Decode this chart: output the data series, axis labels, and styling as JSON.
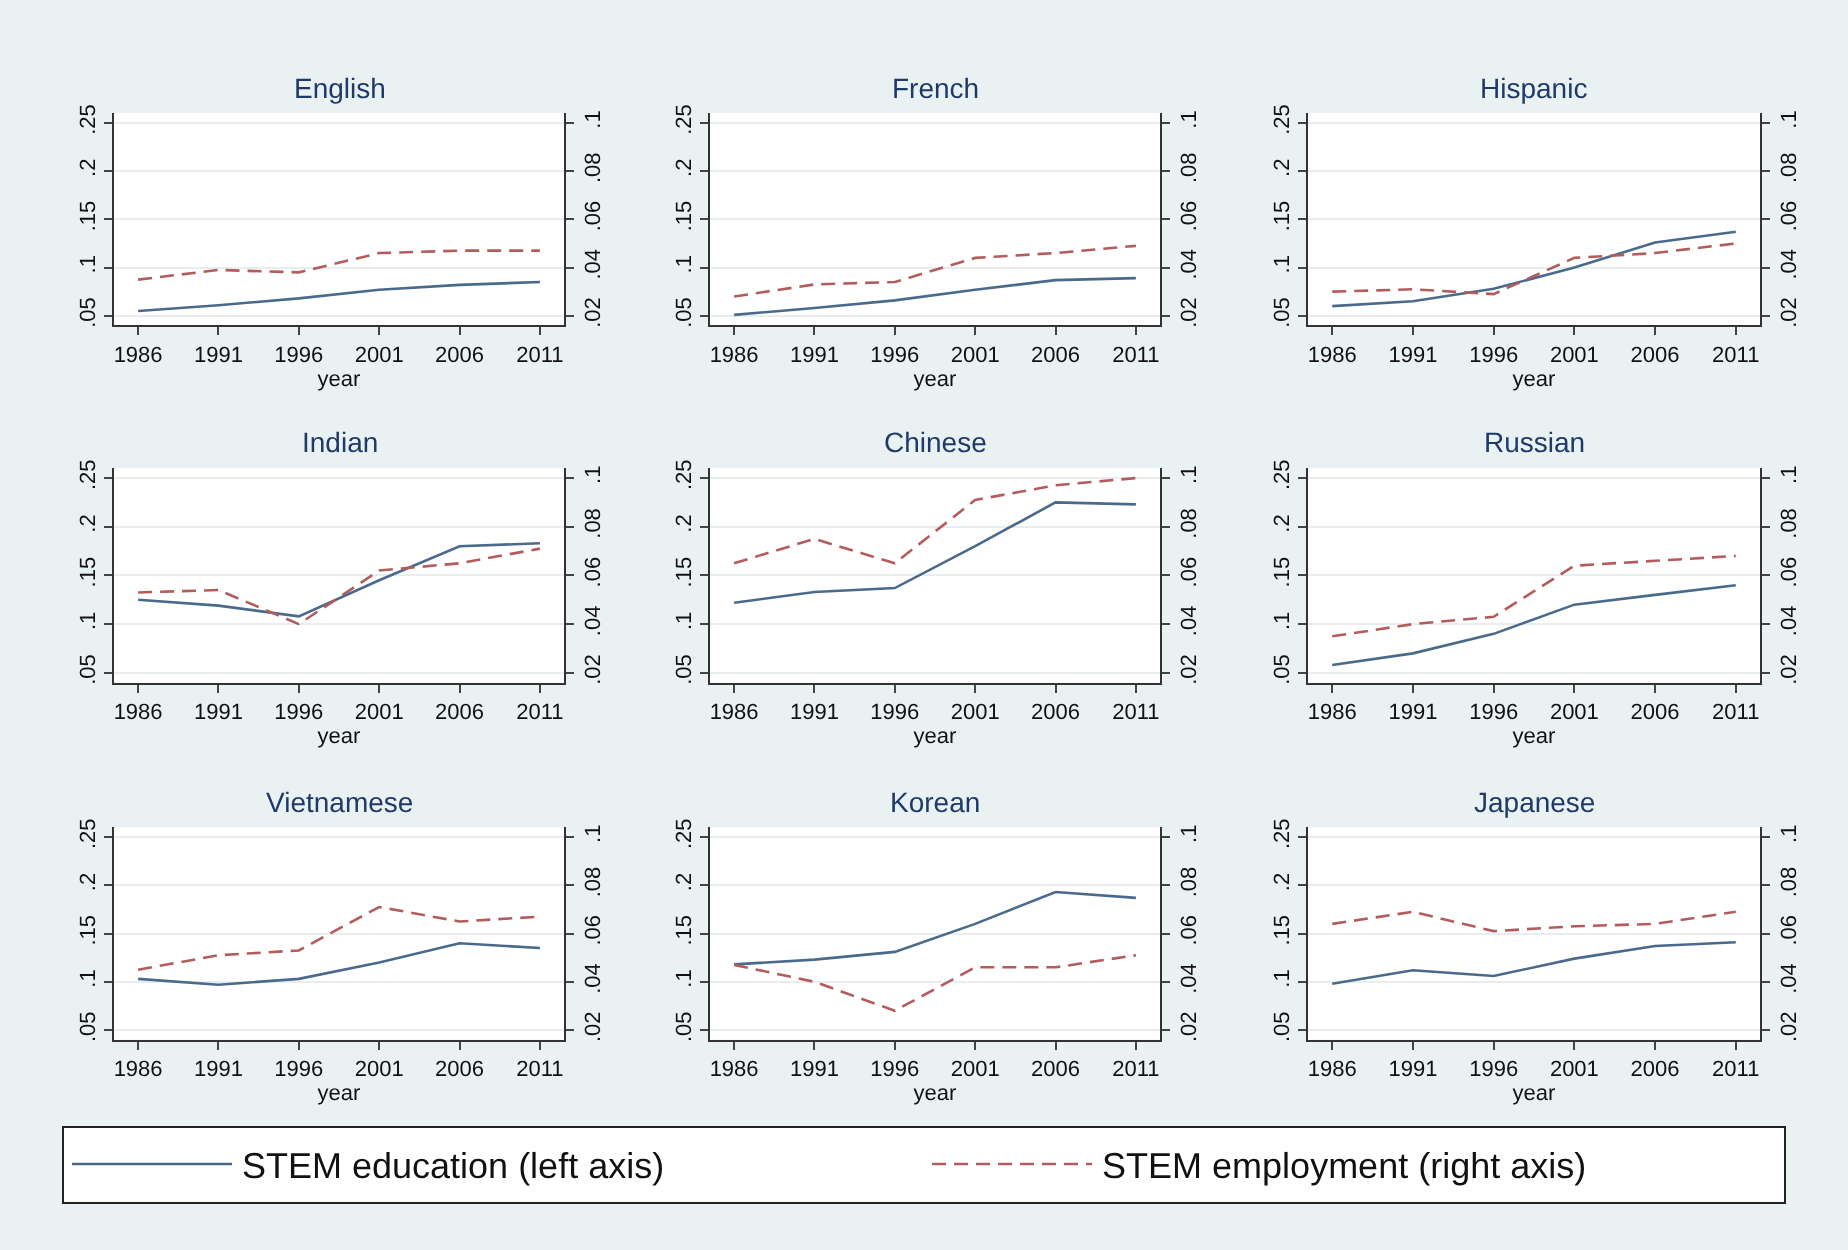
{
  "chart_data": [
    {
      "type": "line",
      "title": "English",
      "xlabel": "year",
      "x": [
        1986,
        1991,
        1996,
        2001,
        2006,
        2011
      ],
      "xlim": [
        1984.5,
        2012.5
      ],
      "xticks": [
        1986,
        1991,
        1996,
        2001,
        2006,
        2011
      ],
      "ylim": [
        0.04,
        0.26
      ],
      "yticks": [
        {
          "value": 0.05,
          "label": ".05"
        },
        {
          "value": 0.1,
          "label": ".1"
        },
        {
          "value": 0.15,
          "label": ".15"
        },
        {
          "value": 0.2,
          "label": ".2"
        },
        {
          "value": 0.25,
          "label": ".25"
        }
      ],
      "y2lim": [
        0.016,
        0.104
      ],
      "y2ticks": [
        {
          "value": 0.02,
          "label": ".02"
        },
        {
          "value": 0.04,
          "label": ".04"
        },
        {
          "value": 0.06,
          "label": ".06"
        },
        {
          "value": 0.08,
          "label": ".08"
        },
        {
          "value": 0.1,
          "label": ".1"
        }
      ],
      "grid": "y",
      "legend": "bottom",
      "series": [
        {
          "name": "STEM education (left axis)",
          "color": "#4a6a8c",
          "line_style": "solid",
          "values": [
            0.055,
            0.061,
            0.068,
            0.077,
            0.082,
            0.085
          ]
        },
        {
          "name": "STEM employment (right axis)",
          "color": "#b25c5c",
          "line_style": "dashed",
          "axis": "y2",
          "values": [
            0.035,
            0.039,
            0.038,
            0.046,
            0.047,
            0.047
          ]
        }
      ]
    },
    {
      "type": "line",
      "title": "French",
      "xlabel": "year",
      "x": [
        1986,
        1991,
        1996,
        2001,
        2006,
        2011
      ],
      "xlim": [
        1984.5,
        2012.5
      ],
      "xticks": [
        1986,
        1991,
        1996,
        2001,
        2006,
        2011
      ],
      "ylim": [
        0.04,
        0.26
      ],
      "yticks": [
        {
          "value": 0.05,
          "label": ".05"
        },
        {
          "value": 0.1,
          "label": ".1"
        },
        {
          "value": 0.15,
          "label": ".15"
        },
        {
          "value": 0.2,
          "label": ".2"
        },
        {
          "value": 0.25,
          "label": ".25"
        }
      ],
      "y2lim": [
        0.016,
        0.104
      ],
      "y2ticks": [
        {
          "value": 0.02,
          "label": ".02"
        },
        {
          "value": 0.04,
          "label": ".04"
        },
        {
          "value": 0.06,
          "label": ".06"
        },
        {
          "value": 0.08,
          "label": ".08"
        },
        {
          "value": 0.1,
          "label": ".1"
        }
      ],
      "grid": "y",
      "series": [
        {
          "name": "STEM education (left axis)",
          "color": "#4a6a8c",
          "line_style": "solid",
          "values": [
            0.051,
            0.058,
            0.066,
            0.077,
            0.087,
            0.089
          ]
        },
        {
          "name": "STEM employment (right axis)",
          "color": "#b25c5c",
          "line_style": "dashed",
          "axis": "y2",
          "values": [
            0.028,
            0.033,
            0.034,
            0.044,
            0.046,
            0.049
          ]
        }
      ]
    },
    {
      "type": "line",
      "title": "Hispanic",
      "xlabel": "year",
      "x": [
        1986,
        1991,
        1996,
        2001,
        2006,
        2011
      ],
      "xlim": [
        1984.5,
        2012.5
      ],
      "xticks": [
        1986,
        1991,
        1996,
        2001,
        2006,
        2011
      ],
      "ylim": [
        0.04,
        0.26
      ],
      "yticks": [
        {
          "value": 0.05,
          "label": ".05"
        },
        {
          "value": 0.1,
          "label": ".1"
        },
        {
          "value": 0.15,
          "label": ".15"
        },
        {
          "value": 0.2,
          "label": ".2"
        },
        {
          "value": 0.25,
          "label": ".25"
        }
      ],
      "y2lim": [
        0.016,
        0.104
      ],
      "y2ticks": [
        {
          "value": 0.02,
          "label": ".02"
        },
        {
          "value": 0.04,
          "label": ".04"
        },
        {
          "value": 0.06,
          "label": ".06"
        },
        {
          "value": 0.08,
          "label": ".08"
        },
        {
          "value": 0.1,
          "label": ".1"
        }
      ],
      "grid": "y",
      "series": [
        {
          "name": "STEM education (left axis)",
          "color": "#4a6a8c",
          "line_style": "solid",
          "values": [
            0.06,
            0.065,
            0.078,
            0.1,
            0.126,
            0.137
          ]
        },
        {
          "name": "STEM employment (right axis)",
          "color": "#b25c5c",
          "line_style": "dashed",
          "axis": "y2",
          "values": [
            0.03,
            0.031,
            0.029,
            0.044,
            0.046,
            0.05
          ]
        }
      ]
    },
    {
      "type": "line",
      "title": "Indian",
      "xlabel": "year",
      "x": [
        1986,
        1991,
        1996,
        2001,
        2006,
        2011
      ],
      "xlim": [
        1984.5,
        2012.5
      ],
      "xticks": [
        1986,
        1991,
        1996,
        2001,
        2006,
        2011
      ],
      "ylim": [
        0.04,
        0.26
      ],
      "yticks": [
        {
          "value": 0.05,
          "label": ".05"
        },
        {
          "value": 0.1,
          "label": ".1"
        },
        {
          "value": 0.15,
          "label": ".15"
        },
        {
          "value": 0.2,
          "label": ".2"
        },
        {
          "value": 0.25,
          "label": ".25"
        }
      ],
      "y2lim": [
        0.016,
        0.104
      ],
      "y2ticks": [
        {
          "value": 0.02,
          "label": ".02"
        },
        {
          "value": 0.04,
          "label": ".04"
        },
        {
          "value": 0.06,
          "label": ".06"
        },
        {
          "value": 0.08,
          "label": ".08"
        },
        {
          "value": 0.1,
          "label": ".1"
        }
      ],
      "grid": "y",
      "series": [
        {
          "name": "STEM education (left axis)",
          "color": "#4a6a8c",
          "line_style": "solid",
          "values": [
            0.125,
            0.119,
            0.108,
            0.145,
            0.18,
            0.183
          ]
        },
        {
          "name": "STEM employment (right axis)",
          "color": "#b25c5c",
          "line_style": "dashed",
          "axis": "y2",
          "values": [
            0.053,
            0.054,
            0.04,
            0.062,
            0.065,
            0.071
          ]
        }
      ]
    },
    {
      "type": "line",
      "title": "Chinese",
      "xlabel": "year",
      "x": [
        1986,
        1991,
        1996,
        2001,
        2006,
        2011
      ],
      "xlim": [
        1984.5,
        2012.5
      ],
      "xticks": [
        1986,
        1991,
        1996,
        2001,
        2006,
        2011
      ],
      "ylim": [
        0.04,
        0.26
      ],
      "yticks": [
        {
          "value": 0.05,
          "label": ".05"
        },
        {
          "value": 0.1,
          "label": ".1"
        },
        {
          "value": 0.15,
          "label": ".15"
        },
        {
          "value": 0.2,
          "label": ".2"
        },
        {
          "value": 0.25,
          "label": ".25"
        }
      ],
      "y2lim": [
        0.016,
        0.104
      ],
      "y2ticks": [
        {
          "value": 0.02,
          "label": ".02"
        },
        {
          "value": 0.04,
          "label": ".04"
        },
        {
          "value": 0.06,
          "label": ".06"
        },
        {
          "value": 0.08,
          "label": ".08"
        },
        {
          "value": 0.1,
          "label": ".1"
        }
      ],
      "grid": "y",
      "series": [
        {
          "name": "STEM education (left axis)",
          "color": "#4a6a8c",
          "line_style": "solid",
          "values": [
            0.122,
            0.133,
            0.137,
            0.18,
            0.225,
            0.223
          ]
        },
        {
          "name": "STEM employment (right axis)",
          "color": "#b25c5c",
          "line_style": "dashed",
          "axis": "y2",
          "values": [
            0.065,
            0.075,
            0.065,
            0.091,
            0.097,
            0.1
          ]
        }
      ]
    },
    {
      "type": "line",
      "title": "Russian",
      "xlabel": "year",
      "x": [
        1986,
        1991,
        1996,
        2001,
        2006,
        2011
      ],
      "xlim": [
        1984.5,
        2012.5
      ],
      "xticks": [
        1986,
        1991,
        1996,
        2001,
        2006,
        2011
      ],
      "ylim": [
        0.04,
        0.26
      ],
      "yticks": [
        {
          "value": 0.05,
          "label": ".05"
        },
        {
          "value": 0.1,
          "label": ".1"
        },
        {
          "value": 0.15,
          "label": ".15"
        },
        {
          "value": 0.2,
          "label": ".2"
        },
        {
          "value": 0.25,
          "label": ".25"
        }
      ],
      "y2lim": [
        0.016,
        0.104
      ],
      "y2ticks": [
        {
          "value": 0.02,
          "label": ".02"
        },
        {
          "value": 0.04,
          "label": ".04"
        },
        {
          "value": 0.06,
          "label": ".06"
        },
        {
          "value": 0.08,
          "label": ".08"
        },
        {
          "value": 0.1,
          "label": ".1"
        }
      ],
      "grid": "y",
      "series": [
        {
          "name": "STEM education (left axis)",
          "color": "#4a6a8c",
          "line_style": "solid",
          "values": [
            0.058,
            0.07,
            0.09,
            0.12,
            0.13,
            0.14
          ]
        },
        {
          "name": "STEM employment (right axis)",
          "color": "#b25c5c",
          "line_style": "dashed",
          "axis": "y2",
          "values": [
            0.035,
            0.04,
            0.043,
            0.064,
            0.066,
            0.068
          ]
        }
      ]
    },
    {
      "type": "line",
      "title": "Vietnamese",
      "xlabel": "year",
      "x": [
        1986,
        1991,
        1996,
        2001,
        2006,
        2011
      ],
      "xlim": [
        1984.5,
        2012.5
      ],
      "xticks": [
        1986,
        1991,
        1996,
        2001,
        2006,
        2011
      ],
      "ylim": [
        0.04,
        0.26
      ],
      "yticks": [
        {
          "value": 0.05,
          "label": ".05"
        },
        {
          "value": 0.1,
          "label": ".1"
        },
        {
          "value": 0.15,
          "label": ".15"
        },
        {
          "value": 0.2,
          "label": ".2"
        },
        {
          "value": 0.25,
          "label": ".25"
        }
      ],
      "y2lim": [
        0.016,
        0.104
      ],
      "y2ticks": [
        {
          "value": 0.02,
          "label": ".02"
        },
        {
          "value": 0.04,
          "label": ".04"
        },
        {
          "value": 0.06,
          "label": ".06"
        },
        {
          "value": 0.08,
          "label": ".08"
        },
        {
          "value": 0.1,
          "label": ".1"
        }
      ],
      "grid": "y",
      "series": [
        {
          "name": "STEM education (left axis)",
          "color": "#4a6a8c",
          "line_style": "solid",
          "values": [
            0.103,
            0.097,
            0.103,
            0.12,
            0.14,
            0.135
          ]
        },
        {
          "name": "STEM employment (right axis)",
          "color": "#b25c5c",
          "line_style": "dashed",
          "axis": "y2",
          "values": [
            0.045,
            0.051,
            0.053,
            0.071,
            0.065,
            0.067
          ]
        }
      ]
    },
    {
      "type": "line",
      "title": "Korean",
      "xlabel": "year",
      "x": [
        1986,
        1991,
        1996,
        2001,
        2006,
        2011
      ],
      "xlim": [
        1984.5,
        2012.5
      ],
      "xticks": [
        1986,
        1991,
        1996,
        2001,
        2006,
        2011
      ],
      "ylim": [
        0.04,
        0.26
      ],
      "yticks": [
        {
          "value": 0.05,
          "label": ".05"
        },
        {
          "value": 0.1,
          "label": ".1"
        },
        {
          "value": 0.15,
          "label": ".15"
        },
        {
          "value": 0.2,
          "label": ".2"
        },
        {
          "value": 0.25,
          "label": ".25"
        }
      ],
      "y2lim": [
        0.016,
        0.104
      ],
      "y2ticks": [
        {
          "value": 0.02,
          "label": ".02"
        },
        {
          "value": 0.04,
          "label": ".04"
        },
        {
          "value": 0.06,
          "label": ".06"
        },
        {
          "value": 0.08,
          "label": ".08"
        },
        {
          "value": 0.1,
          "label": ".1"
        }
      ],
      "grid": "y",
      "series": [
        {
          "name": "STEM education (left axis)",
          "color": "#4a6a8c",
          "line_style": "solid",
          "values": [
            0.118,
            0.123,
            0.131,
            0.16,
            0.193,
            0.187
          ]
        },
        {
          "name": "STEM employment (right axis)",
          "color": "#b25c5c",
          "line_style": "dashed",
          "axis": "y2",
          "values": [
            0.047,
            0.04,
            0.028,
            0.046,
            0.046,
            0.051
          ]
        }
      ]
    },
    {
      "type": "line",
      "title": "Japanese",
      "xlabel": "year",
      "x": [
        1986,
        1991,
        1996,
        2001,
        2006,
        2011
      ],
      "xlim": [
        1984.5,
        2012.5
      ],
      "xticks": [
        1986,
        1991,
        1996,
        2001,
        2006,
        2011
      ],
      "ylim": [
        0.04,
        0.26
      ],
      "yticks": [
        {
          "value": 0.05,
          "label": ".05"
        },
        {
          "value": 0.1,
          "label": ".1"
        },
        {
          "value": 0.15,
          "label": ".15"
        },
        {
          "value": 0.2,
          "label": ".2"
        },
        {
          "value": 0.25,
          "label": ".25"
        }
      ],
      "y2lim": [
        0.016,
        0.104
      ],
      "y2ticks": [
        {
          "value": 0.02,
          "label": ".02"
        },
        {
          "value": 0.04,
          "label": ".04"
        },
        {
          "value": 0.06,
          "label": ".06"
        },
        {
          "value": 0.08,
          "label": ".08"
        },
        {
          "value": 0.1,
          "label": ".1"
        }
      ],
      "grid": "y",
      "series": [
        {
          "name": "STEM education (left axis)",
          "color": "#4a6a8c",
          "line_style": "solid",
          "values": [
            0.098,
            0.112,
            0.106,
            0.124,
            0.137,
            0.141
          ]
        },
        {
          "name": "STEM employment (right axis)",
          "color": "#b25c5c",
          "line_style": "dashed",
          "axis": "y2",
          "values": [
            0.064,
            0.069,
            0.061,
            0.063,
            0.064,
            0.069
          ]
        }
      ]
    }
  ]
}
